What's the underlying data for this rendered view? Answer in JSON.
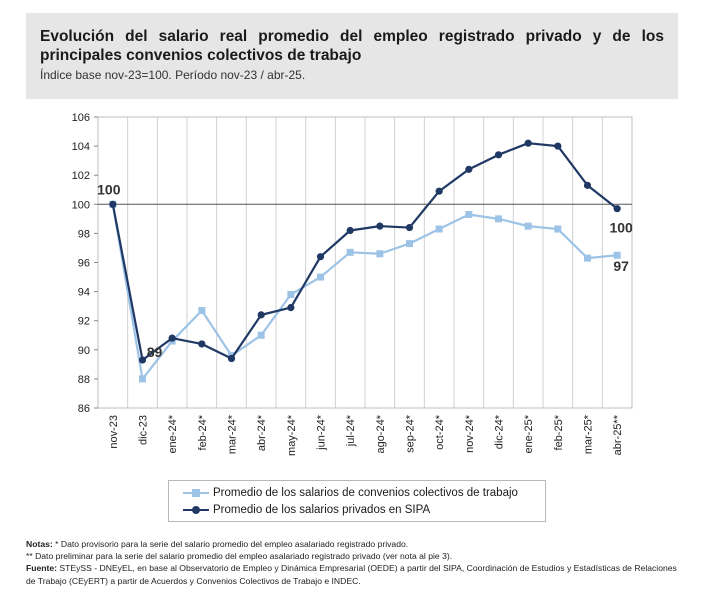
{
  "header": {
    "title": "Evolución del salario real promedio del empleo registrado privado y de los principales convenios colectivos de trabajo",
    "subtitle": "Índice base nov-23=100. Período nov-23 / abr-25."
  },
  "chart_data": {
    "type": "line",
    "categories": [
      "nov-23",
      "dic-23",
      "ene-24*",
      "feb-24*",
      "mar-24*",
      "abr-24*",
      "may-24*",
      "jun-24*",
      "jul-24*",
      "ago-24*",
      "sep-24*",
      "oct-24*",
      "nov-24*",
      "dic-24*",
      "ene-25*",
      "feb-25*",
      "mar-25*",
      "abr-25**"
    ],
    "ylim": [
      86,
      106
    ],
    "yticks": [
      86,
      88,
      90,
      92,
      94,
      96,
      98,
      100,
      102,
      104,
      106
    ],
    "reference_line": 100,
    "grid": "vertical",
    "legend_position": "bottom",
    "series": [
      {
        "name": "Promedio de los salarios de convenios colectivos de trabajo",
        "color": "#9dc3e6",
        "marker": "square",
        "values": [
          100,
          88.0,
          90.6,
          92.7,
          89.6,
          91.0,
          93.8,
          95.0,
          96.7,
          96.6,
          97.3,
          98.3,
          99.3,
          99.0,
          98.5,
          98.3,
          96.3,
          96.5
        ]
      },
      {
        "name": "Promedio de los salarios privados en SIPA",
        "color": "#1f3864",
        "marker": "circle",
        "values": [
          100,
          89.3,
          90.8,
          90.4,
          89.4,
          92.4,
          92.9,
          96.4,
          98.2,
          98.5,
          98.4,
          100.9,
          102.4,
          103.4,
          104.2,
          104.0,
          101.3,
          99.7
        ]
      }
    ],
    "annotations": [
      {
        "text": "100",
        "index": 0,
        "value": 100
      },
      {
        "text": "89",
        "index": 1,
        "value": 89.3
      },
      {
        "text": "100",
        "index": 17,
        "value": 99.7
      },
      {
        "text": "97",
        "index": 17,
        "value": 96.5
      }
    ]
  },
  "notes": {
    "notes_label": "Notas:",
    "note1": " * Dato provisorio para la serie del salario promedio del empleo asalariado registrado privado.",
    "note2": "** Dato preliminar para la serie del salario promedio del empleo asalariado registrado privado (ver nota al pie 3).",
    "source_label": "Fuente:",
    "source": " STEySS - DNEyEL, en base al Observatorio de Empleo y Dinámica Empresarial (OEDE) a partir del SIPA, Coordinación de Estudios y Estadísticas de Relaciones de Trabajo (CEyERT) a partir de Acuerdos y Convenios Colectivos de Trabajo e INDEC."
  }
}
